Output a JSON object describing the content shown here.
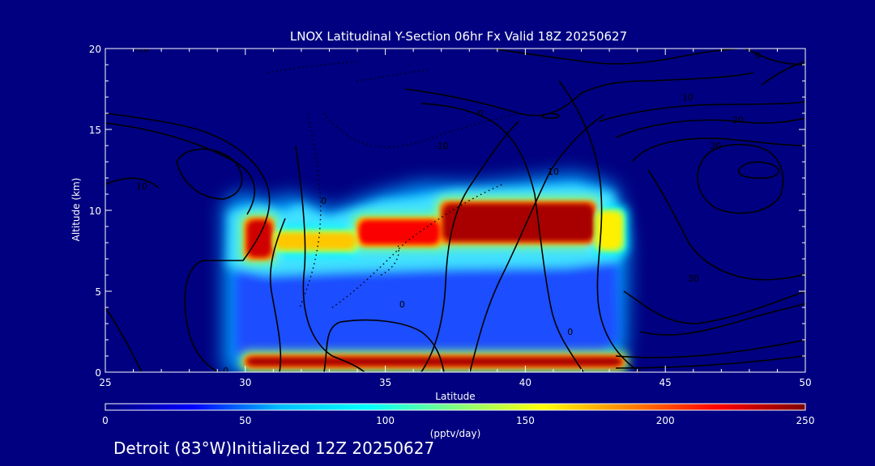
{
  "chart_data": {
    "type": "heatmap",
    "title": "LNOX Latitudinal Y-Section 06hr  Fx Valid 18Z 20250627",
    "xlabel": "Latitude",
    "ylabel": "Altitude (km)",
    "xlim": [
      25,
      50
    ],
    "ylim": [
      0,
      20
    ],
    "xticks": [
      "25",
      "30",
      "35",
      "40",
      "45",
      "50"
    ],
    "yticks": [
      "0",
      "5",
      "10",
      "15",
      "20"
    ],
    "colorbar": {
      "min": 0,
      "max": 250,
      "ticks": [
        "0",
        "50",
        "100",
        "150",
        "200",
        "250"
      ],
      "label": "(pptv/day)",
      "colors": [
        "#00007f",
        "#0000ff",
        "#00bfff",
        "#00ffff",
        "#7fff7f",
        "#ffff00",
        "#ff8000",
        "#ff0000",
        "#7f0000"
      ]
    },
    "field_regions": [
      {
        "lat": [
          30.0,
          43.5
        ],
        "alt": [
          0.3,
          1.0
        ],
        "value": 240
      },
      {
        "lat": [
          30.0,
          31.0
        ],
        "alt": [
          7.0,
          9.5
        ],
        "value": 230
      },
      {
        "lat": [
          31.0,
          34.0
        ],
        "alt": [
          7.5,
          8.7
        ],
        "value": 170
      },
      {
        "lat": [
          34.0,
          37.0
        ],
        "alt": [
          7.8,
          9.5
        ],
        "value": 220
      },
      {
        "lat": [
          37.0,
          42.5
        ],
        "alt": [
          8.0,
          10.5
        ],
        "value": 240
      },
      {
        "lat": [
          42.5,
          43.5
        ],
        "alt": [
          7.5,
          10.0
        ],
        "value": 160
      }
    ],
    "contour_labels": [
      {
        "text": "10",
        "lat": 26.3,
        "alt": 11.5
      },
      {
        "text": "10",
        "lat": 41.0,
        "alt": 12.4
      },
      {
        "text": "0",
        "lat": 32.8,
        "alt": 10.6
      },
      {
        "text": "-10",
        "lat": 37.0,
        "alt": 14.0
      },
      {
        "text": "0",
        "lat": 38.4,
        "alt": 16.0
      },
      {
        "text": "0",
        "lat": 48.3,
        "alt": 19.6
      },
      {
        "text": "10",
        "lat": 45.8,
        "alt": 17.0
      },
      {
        "text": "20",
        "lat": 47.6,
        "alt": 15.6
      },
      {
        "text": "30",
        "lat": 46.8,
        "alt": 14.0
      },
      {
        "text": "-10",
        "lat": 26.3,
        "alt": 20.0
      },
      {
        "text": "0",
        "lat": 35.6,
        "alt": 4.2
      },
      {
        "text": "0",
        "lat": 41.6,
        "alt": 2.5
      },
      {
        "text": "30",
        "lat": 46.0,
        "alt": 5.8
      },
      {
        "text": "0",
        "lat": 29.3,
        "alt": 0.1
      }
    ]
  },
  "footer": "Detroit (83°W)Initialized 12Z 20250627"
}
